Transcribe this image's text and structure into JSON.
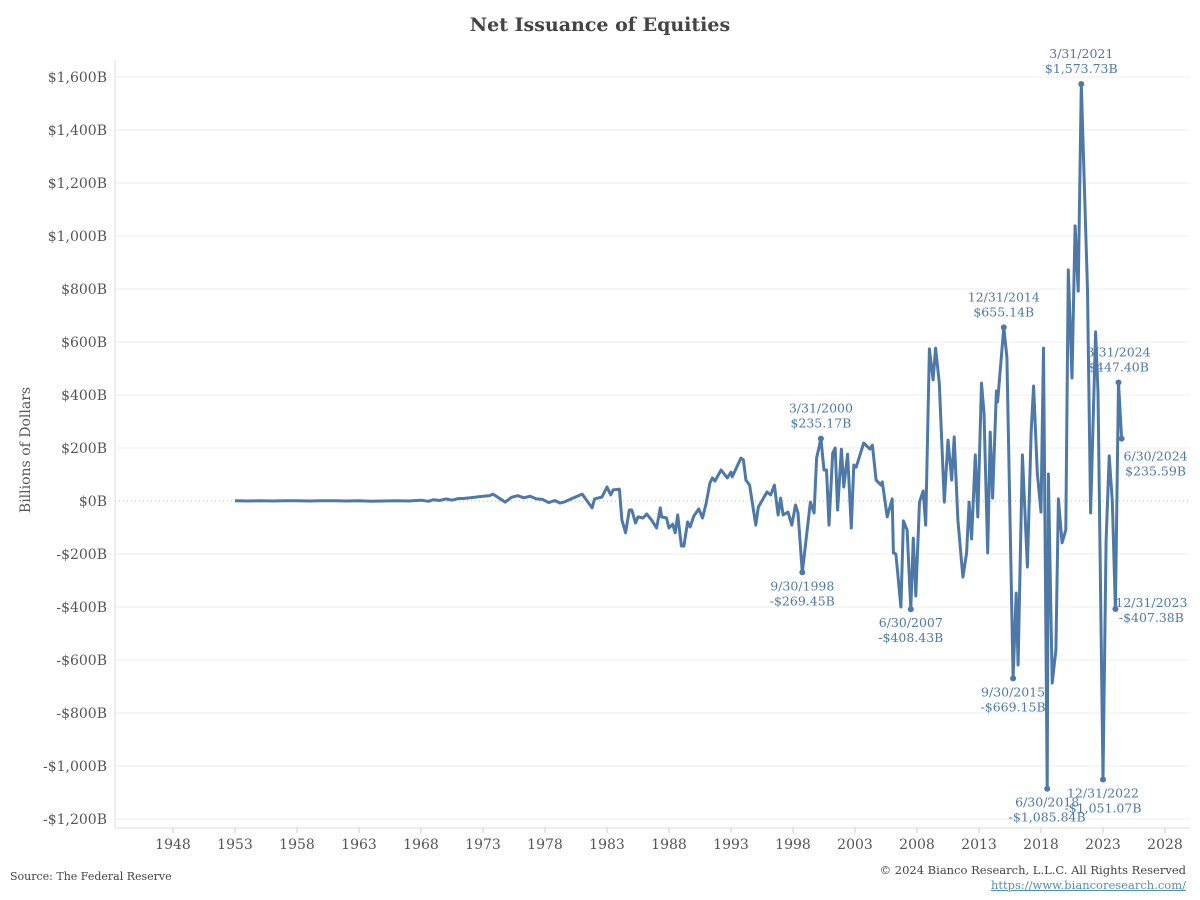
{
  "chart_data": {
    "type": "line",
    "title": "Net Issuance of Equities",
    "xlabel": "",
    "ylabel": "Billions of Dollars",
    "xlim": [
      1945,
      2030
    ],
    "ylim": [
      -1250,
      1700
    ],
    "x_ticks": [
      "1948",
      "1953",
      "1958",
      "1963",
      "1968",
      "1973",
      "1978",
      "1983",
      "1988",
      "1993",
      "1998",
      "2003",
      "2008",
      "2013",
      "2018",
      "2023",
      "2028"
    ],
    "y_ticks": [
      {
        "v": 1600,
        "label": "$1,600B"
      },
      {
        "v": 1400,
        "label": "$1,400B"
      },
      {
        "v": 1200,
        "label": "$1,200B"
      },
      {
        "v": 1000,
        "label": "$1,000B"
      },
      {
        "v": 800,
        "label": "$800B"
      },
      {
        "v": 600,
        "label": "$600B"
      },
      {
        "v": 400,
        "label": "$400B"
      },
      {
        "v": 200,
        "label": "$200B"
      },
      {
        "v": 0,
        "label": "$0B"
      },
      {
        "v": -200,
        "label": "-$200B"
      },
      {
        "v": -400,
        "label": "-$400B"
      },
      {
        "v": -600,
        "label": "-$600B"
      },
      {
        "v": -800,
        "label": "-$800B"
      },
      {
        "v": -1000,
        "label": "-$1,000B"
      },
      {
        "v": -1200,
        "label": "-$1,200B"
      }
    ],
    "grid": true,
    "line_color": "#4e79a7",
    "series": [
      {
        "points": [
          [
            1953,
            1
          ],
          [
            1954,
            0
          ],
          [
            1955,
            1
          ],
          [
            1956,
            0
          ],
          [
            1957,
            1
          ],
          [
            1958,
            1
          ],
          [
            1959,
            0
          ],
          [
            1960,
            1
          ],
          [
            1961,
            1
          ],
          [
            1962,
            0
          ],
          [
            1963,
            1
          ],
          [
            1964,
            -1
          ],
          [
            1965,
            0
          ],
          [
            1966,
            1
          ],
          [
            1967,
            0
          ],
          [
            1968,
            3
          ],
          [
            1968.6,
            -1
          ],
          [
            1969,
            5
          ],
          [
            1969.5,
            2
          ],
          [
            1970,
            8
          ],
          [
            1970.5,
            3
          ],
          [
            1971,
            9
          ],
          [
            1971.5,
            10
          ],
          [
            1972,
            12
          ],
          [
            1972.5,
            15
          ],
          [
            1973,
            18
          ],
          [
            1973.5,
            20
          ],
          [
            1973.8,
            26
          ],
          [
            1974.2,
            14
          ],
          [
            1974.8,
            -4
          ],
          [
            1975.3,
            14
          ],
          [
            1975.8,
            20
          ],
          [
            1976.3,
            12
          ],
          [
            1976.8,
            18
          ],
          [
            1977.3,
            8
          ],
          [
            1977.8,
            6
          ],
          [
            1978.3,
            -6
          ],
          [
            1978.8,
            2
          ],
          [
            1979.2,
            -8
          ],
          [
            1979.6,
            -3
          ],
          [
            1980.2,
            10
          ],
          [
            1981,
            26
          ],
          [
            1981.8,
            -26
          ],
          [
            1982,
            8
          ],
          [
            1982.6,
            15
          ],
          [
            1983,
            53
          ],
          [
            1983.3,
            23
          ],
          [
            1983.5,
            42
          ],
          [
            1984,
            45
          ],
          [
            1984.2,
            -72
          ],
          [
            1984.5,
            -120
          ],
          [
            1984.8,
            -34
          ],
          [
            1985,
            -34
          ],
          [
            1985.3,
            -83
          ],
          [
            1985.5,
            -60
          ],
          [
            1985.9,
            -64
          ],
          [
            1986.2,
            -49
          ],
          [
            1986.6,
            -72
          ],
          [
            1987,
            -102
          ],
          [
            1987.3,
            -26
          ],
          [
            1987.4,
            -60
          ],
          [
            1987.8,
            -64
          ],
          [
            1988,
            -102
          ],
          [
            1988.3,
            -87
          ],
          [
            1988.5,
            -120
          ],
          [
            1988.7,
            -53
          ],
          [
            1989,
            -170
          ],
          [
            1989.2,
            -170
          ],
          [
            1989.5,
            -79
          ],
          [
            1989.7,
            -98
          ],
          [
            1990,
            -57
          ],
          [
            1990.4,
            -30
          ],
          [
            1990.7,
            -64
          ],
          [
            1991,
            -8
          ],
          [
            1991.3,
            68
          ],
          [
            1991.5,
            87
          ],
          [
            1991.7,
            75
          ],
          [
            1992.2,
            117
          ],
          [
            1992.7,
            87
          ],
          [
            1993,
            109
          ],
          [
            1993.1,
            91
          ],
          [
            1993.8,
            162
          ],
          [
            1994,
            155
          ],
          [
            1994.2,
            79
          ],
          [
            1994.5,
            60
          ],
          [
            1995,
            -91
          ],
          [
            1995.2,
            -23
          ],
          [
            1995.9,
            34
          ],
          [
            1996.2,
            23
          ],
          [
            1996.5,
            60
          ],
          [
            1996.8,
            -53
          ],
          [
            1997,
            11
          ],
          [
            1997.2,
            -53
          ],
          [
            1997.6,
            -42
          ],
          [
            1997.9,
            -91
          ],
          [
            1998.2,
            -15
          ],
          [
            1998.4,
            -45
          ],
          [
            1998.75,
            -269.45
          ],
          [
            1999.4,
            -4
          ],
          [
            1999.7,
            -45
          ],
          [
            1999.9,
            162
          ],
          [
            2000.25,
            235.17
          ],
          [
            2000.5,
            117
          ],
          [
            2000.7,
            117
          ],
          [
            2000.9,
            -91
          ],
          [
            2001.2,
            181
          ],
          [
            2001.4,
            200
          ],
          [
            2001.6,
            -34
          ],
          [
            2001.9,
            196
          ],
          [
            2002.1,
            53
          ],
          [
            2002.4,
            177
          ],
          [
            2002.7,
            -102
          ],
          [
            2002.9,
            136
          ],
          [
            2003.1,
            128
          ],
          [
            2003.7,
            219
          ],
          [
            2004.2,
            196
          ],
          [
            2004.4,
            211
          ],
          [
            2004.7,
            79
          ],
          [
            2005.1,
            60
          ],
          [
            2005.2,
            72
          ],
          [
            2005.6,
            -60
          ],
          [
            2006,
            8
          ],
          [
            2006.1,
            -196
          ],
          [
            2006.3,
            -200
          ],
          [
            2006.7,
            -400
          ],
          [
            2006.9,
            -75
          ],
          [
            2007.2,
            -109
          ],
          [
            2007.5,
            -408.43
          ],
          [
            2007.7,
            -140
          ],
          [
            2007.9,
            -358
          ],
          [
            2008.2,
            -4
          ],
          [
            2008.5,
            38
          ],
          [
            2008.7,
            -91
          ],
          [
            2009,
            574
          ],
          [
            2009.3,
            457
          ],
          [
            2009.5,
            577
          ],
          [
            2009.8,
            445
          ],
          [
            2010.2,
            -4
          ],
          [
            2010.5,
            230
          ],
          [
            2010.8,
            79
          ],
          [
            2011,
            242
          ],
          [
            2011.3,
            -72
          ],
          [
            2011.7,
            -287
          ],
          [
            2012,
            -196
          ],
          [
            2012.2,
            -4
          ],
          [
            2012.4,
            -143
          ],
          [
            2012.7,
            174
          ],
          [
            2012.9,
            -60
          ],
          [
            2013.2,
            445
          ],
          [
            2013.4,
            332
          ],
          [
            2013.7,
            -196
          ],
          [
            2013.9,
            260
          ],
          [
            2014.1,
            11
          ],
          [
            2014.4,
            415
          ],
          [
            2014.5,
            374
          ],
          [
            2015.0,
            655.14
          ],
          [
            2015.25,
            543
          ],
          [
            2015.75,
            -669.15
          ],
          [
            2016,
            -347
          ],
          [
            2016.15,
            -619
          ],
          [
            2016.5,
            174
          ],
          [
            2016.9,
            -249
          ],
          [
            2017.2,
            257
          ],
          [
            2017.4,
            434
          ],
          [
            2017.7,
            106
          ],
          [
            2018,
            -42
          ],
          [
            2018.2,
            577
          ],
          [
            2018.5,
            -1085.84
          ],
          [
            2018.6,
            102
          ],
          [
            2018.9,
            -687
          ],
          [
            2019.2,
            -562
          ],
          [
            2019.4,
            8
          ],
          [
            2019.7,
            -158
          ],
          [
            2020,
            -109
          ],
          [
            2020.2,
            872
          ],
          [
            2020.5,
            464
          ],
          [
            2020.75,
            1038
          ],
          [
            2021,
            792
          ],
          [
            2021.25,
            1573.73
          ],
          [
            2021.75,
            796
          ],
          [
            2022,
            -45
          ],
          [
            2022.4,
            638
          ],
          [
            2022.6,
            411
          ],
          [
            2023.0,
            -1051.07
          ],
          [
            2023.25,
            -150
          ],
          [
            2023.5,
            170
          ],
          [
            2023.75,
            0
          ],
          [
            2024.0,
            -407.38
          ],
          [
            2024.25,
            447.4
          ],
          [
            2024.5,
            235.59
          ]
        ]
      }
    ],
    "annotations": [
      {
        "x": 1998.75,
        "y": -269.45,
        "date": "9/30/1998",
        "value": "-$269.45B",
        "pos": "below"
      },
      {
        "x": 2000.25,
        "y": 235.17,
        "date": "3/31/2000",
        "value": "$235.17B",
        "pos": "above"
      },
      {
        "x": 2007.5,
        "y": -408.43,
        "date": "6/30/2007",
        "value": "-$408.43B",
        "pos": "below"
      },
      {
        "x": 2015.0,
        "y": 655.14,
        "date": "12/31/2014",
        "value": "$655.14B",
        "pos": "above"
      },
      {
        "x": 2015.75,
        "y": -669.15,
        "date": "9/30/2015",
        "value": "-$669.15B",
        "pos": "below"
      },
      {
        "x": 2018.5,
        "y": -1085.84,
        "date": "6/30/2018",
        "value": "-$1,085.84B",
        "pos": "below"
      },
      {
        "x": 2021.25,
        "y": 1573.73,
        "date": "3/31/2021",
        "value": "$1,573.73B",
        "pos": "above"
      },
      {
        "x": 2023.0,
        "y": -1051.07,
        "date": "12/31/2022",
        "value": "-$1,051.07B",
        "pos": "below"
      },
      {
        "x": 2024.0,
        "y": -407.38,
        "date": "12/31/2023",
        "value": "-$407.38B",
        "pos": "right"
      },
      {
        "x": 2024.25,
        "y": 447.4,
        "date": "3/31/2024",
        "value": "$447.40B",
        "pos": "above"
      },
      {
        "x": 2024.5,
        "y": 235.59,
        "date": "6/30/2024",
        "value": "$235.59B",
        "pos": "right-end"
      }
    ]
  },
  "footer": {
    "source": "Source: The Federal Reserve",
    "copyright": "© 2024 Bianco Research, L.L.C. All Rights Reserved",
    "link": "https://www.biancoresearch.com/"
  }
}
